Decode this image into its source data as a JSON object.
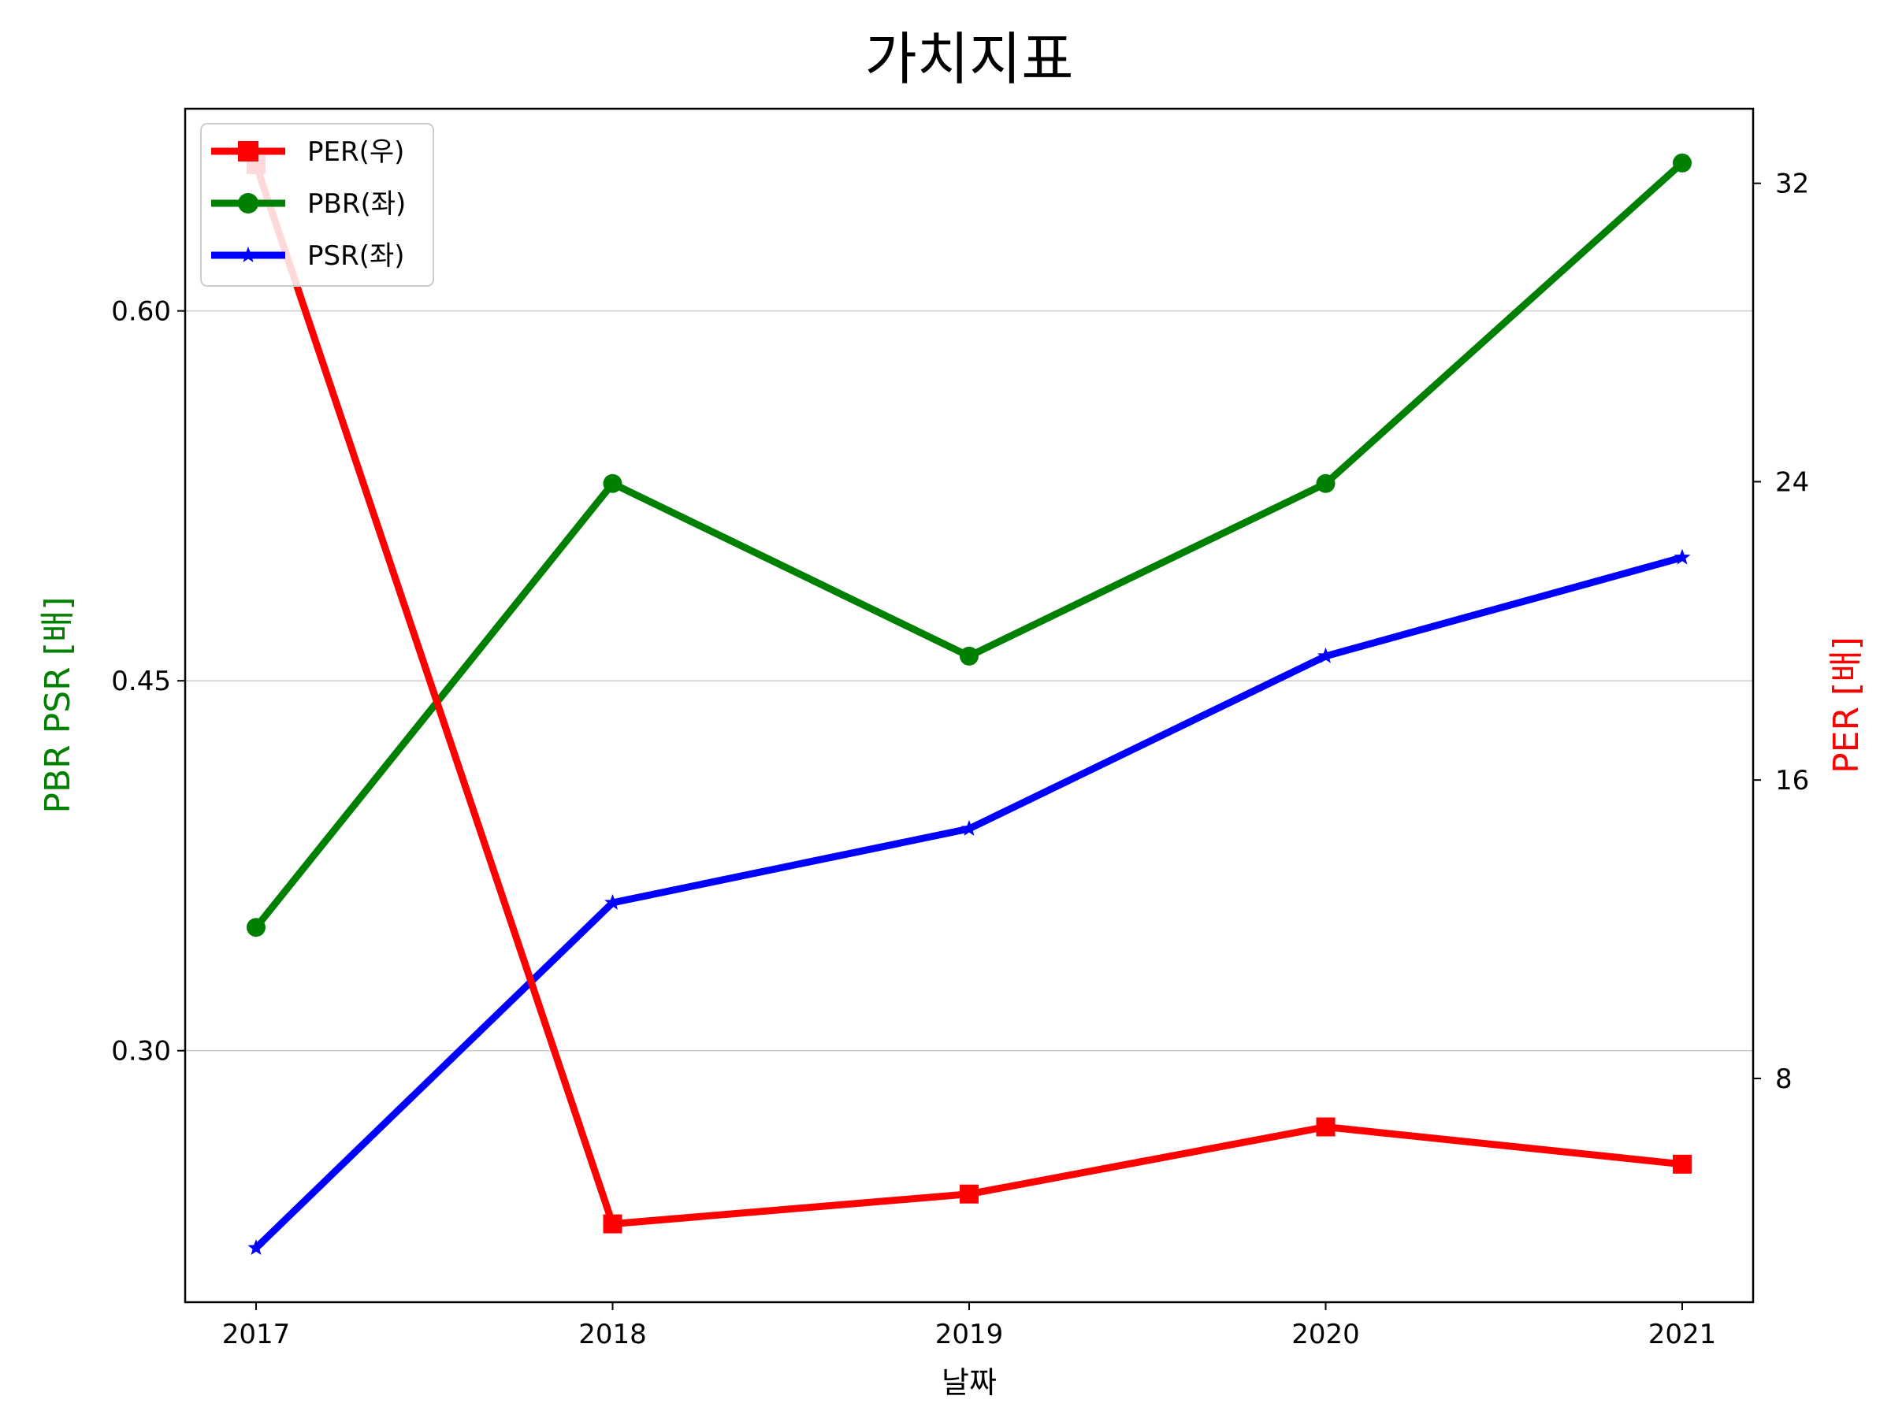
{
  "chart_data": {
    "type": "line",
    "title": "가치지표",
    "xlabel": "날짜",
    "ylabel_left": "PBR PSR [배]",
    "ylabel_right": "PER [배]",
    "categories": [
      "2017",
      "2018",
      "2019",
      "2020",
      "2021"
    ],
    "ylim_left": [
      0.198,
      0.682
    ],
    "yticks_left": [
      "0.30",
      "0.45",
      "0.60"
    ],
    "ylim_right": [
      2.0,
      34.0
    ],
    "yticks_right": [
      "8",
      "16",
      "24",
      "32"
    ],
    "grid": "left-axis horizontal",
    "legend_position": "top-left",
    "series": [
      {
        "name": "PER(우)",
        "axis": "right",
        "color": "#ff0000",
        "marker": "square",
        "values": [
          32.5,
          4.1,
          4.9,
          6.7,
          5.7
        ]
      },
      {
        "name": "PBR(좌)",
        "axis": "left",
        "color": "#008000",
        "marker": "circle",
        "values": [
          0.35,
          0.53,
          0.46,
          0.53,
          0.66
        ]
      },
      {
        "name": "PSR(좌)",
        "axis": "left",
        "color": "#0000ff",
        "marker": "star",
        "values": [
          0.22,
          0.36,
          0.39,
          0.46,
          0.5
        ]
      }
    ]
  }
}
